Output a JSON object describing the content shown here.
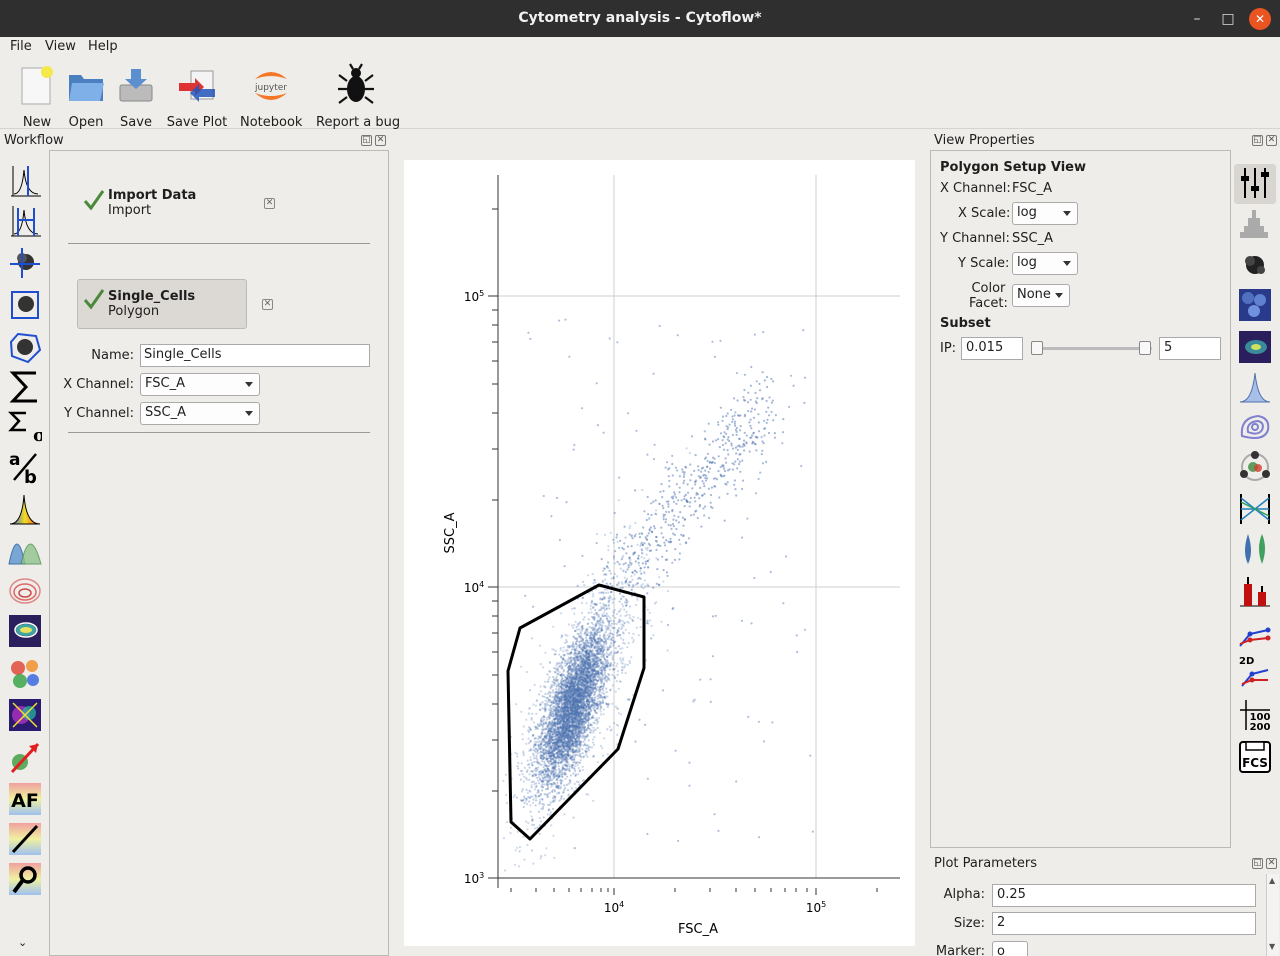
{
  "window": {
    "title": "Cytometry analysis - Cytoflow*",
    "min": "–",
    "max": "□",
    "close": "✕"
  },
  "menu": {
    "file": "File",
    "view": "View",
    "help": "Help"
  },
  "toolbar": {
    "new": "New",
    "open": "Open",
    "save": "Save",
    "save_plot": "Save Plot",
    "notebook": "Notebook",
    "report_bug": "Report a bug",
    "jupyter_logo_text": "jupyter"
  },
  "workflow": {
    "title": "Workflow",
    "items": [
      {
        "title": "Import Data",
        "subtitle": "Import"
      },
      {
        "title": "Single_Cells",
        "subtitle": "Polygon"
      }
    ],
    "form": {
      "name_label": "Name:",
      "name_value": "Single_Cells",
      "xchannel_label": "X Channel:",
      "xchannel_value": "FSC_A",
      "ychannel_label": "Y Channel:",
      "ychannel_value": "SSC_A"
    }
  },
  "plot": {
    "xlabel": "FSC_A",
    "ylabel": "SSC_A",
    "xticks": [
      {
        "base": "10",
        "exp": "4"
      },
      {
        "base": "10",
        "exp": "5"
      }
    ],
    "yticks": [
      {
        "base": "10",
        "exp": "3"
      },
      {
        "base": "10",
        "exp": "4"
      },
      {
        "base": "10",
        "exp": "5"
      }
    ]
  },
  "view_properties": {
    "title": "View Properties",
    "heading": "Polygon Setup View",
    "xchannel_label": "X Channel:",
    "xchannel_value": "FSC_A",
    "xscale_label": "X Scale:",
    "xscale_value": "log",
    "ychannel_label": "Y Channel:",
    "ychannel_value": "SSC_A",
    "yscale_label": "Y Scale:",
    "yscale_value": "log",
    "colorfacet_label_1": "Color",
    "colorfacet_label_2": "Facet:",
    "colorfacet_value": "None",
    "subset_heading": "Subset",
    "ip_label": "IP:",
    "ip_min": "0.015",
    "ip_max": "5"
  },
  "plot_params": {
    "title": "Plot Parameters",
    "alpha_label": "Alpha:",
    "alpha_value": "0.25",
    "size_label": "Size:",
    "size_value": "2",
    "marker_label": "Marker:",
    "marker_value": "o"
  },
  "view_icons": {
    "fcs_text": "FCS",
    "hundred": "100",
    "two_hundred": "200",
    "twod": "2D"
  },
  "op_icons": {
    "af_text": "AF"
  },
  "colors": {
    "scatter": "#4c72b0",
    "accent": "#e95420",
    "check": "#4a8a3a"
  }
}
